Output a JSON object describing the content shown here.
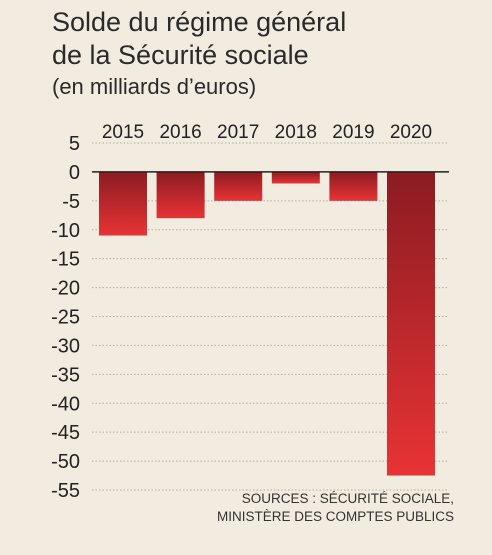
{
  "title_line1": "Solde du régime général",
  "title_line2": "de la Sécurité sociale",
  "subtitle": "(en milliards d’euros)",
  "source_line1": "SOURCES : SÉCURITÉ SOCIALE,",
  "source_line2": "MINISTÈRE DES COMPTES PUBLICS",
  "colors": {
    "bar_top": "#8b1c22",
    "bar_bottom": "#e83335",
    "grid": "#b3aca2",
    "zero_line": "#222222",
    "background": "#f2ebdf"
  },
  "chart_data": {
    "type": "bar",
    "categories": [
      "2015",
      "2016",
      "2017",
      "2018",
      "2019",
      "2020"
    ],
    "values": [
      -11,
      -8,
      -5,
      -2,
      -5,
      -52.5
    ],
    "ylim": [
      -55,
      5
    ],
    "yticks": [
      5,
      0,
      -5,
      -10,
      -15,
      -20,
      -25,
      -30,
      -35,
      -40,
      -45,
      -50,
      -55
    ],
    "grid": true,
    "category_labels_position": "top"
  }
}
